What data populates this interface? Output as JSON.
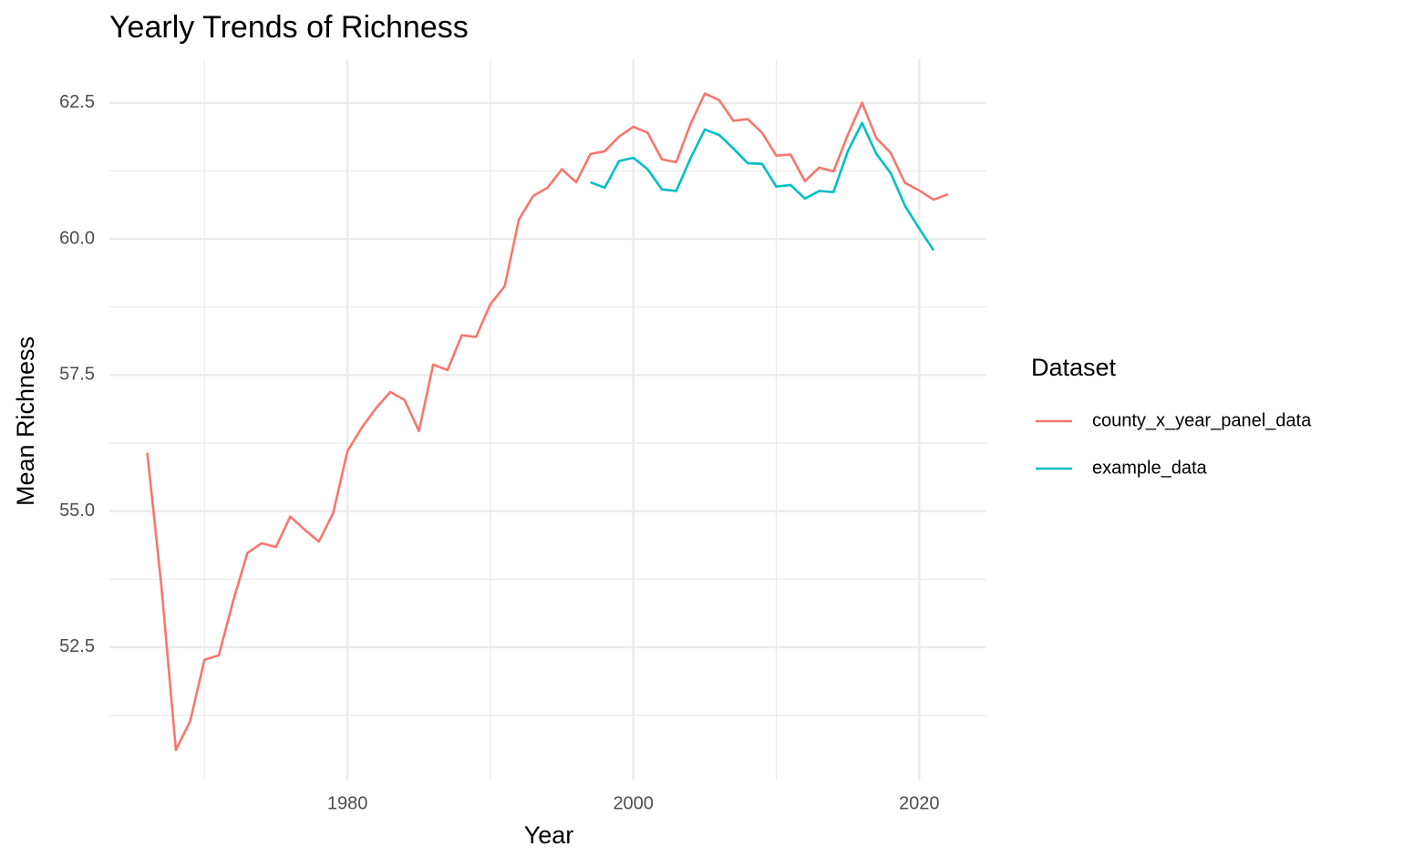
{
  "chart_data": {
    "type": "line",
    "title": "Yearly Trends of Richness",
    "x_label": "Year",
    "y_label": "Mean Richness",
    "legend_title": "Dataset",
    "legend": "right",
    "grid": true,
    "x": [
      1966,
      1967,
      1968,
      1969,
      1970,
      1971,
      1972,
      1973,
      1974,
      1975,
      1976,
      1977,
      1978,
      1979,
      1980,
      1981,
      1982,
      1983,
      1984,
      1985,
      1986,
      1987,
      1988,
      1989,
      1990,
      1991,
      1992,
      1993,
      1994,
      1995,
      1996,
      1997,
      1998,
      1999,
      2000,
      2001,
      2002,
      2003,
      2004,
      2005,
      2006,
      2007,
      2008,
      2009,
      2010,
      2011,
      2012,
      2013,
      2014,
      2015,
      2016,
      2017,
      2018,
      2019,
      2020,
      2021,
      2022
    ],
    "series": [
      {
        "name": "county_x_year_panel_data",
        "color": "#F8766D",
        "values": [
          56.07,
          53.59,
          50.61,
          51.14,
          52.27,
          52.35,
          53.34,
          54.23,
          54.41,
          54.34,
          54.9,
          54.66,
          54.44,
          54.96,
          56.1,
          56.53,
          56.89,
          57.19,
          57.04,
          56.47,
          57.69,
          57.59,
          58.23,
          58.2,
          58.8,
          59.13,
          60.36,
          60.79,
          60.94,
          61.28,
          61.04,
          61.56,
          61.61,
          61.88,
          62.06,
          61.95,
          61.46,
          61.41,
          62.11,
          62.67,
          62.55,
          62.17,
          62.2,
          61.95,
          61.53,
          61.55,
          61.06,
          61.31,
          61.24,
          61.91,
          62.5,
          61.85,
          61.58,
          61.03,
          60.89,
          60.72,
          60.82
        ]
      },
      {
        "name": "example_data",
        "color": "#00BFC4",
        "values": [
          null,
          null,
          null,
          null,
          null,
          null,
          null,
          null,
          null,
          null,
          null,
          null,
          null,
          null,
          null,
          null,
          null,
          null,
          null,
          null,
          null,
          null,
          null,
          null,
          null,
          null,
          null,
          null,
          null,
          null,
          null,
          61.04,
          60.94,
          61.43,
          61.49,
          61.28,
          60.91,
          60.88,
          61.48,
          62.01,
          61.91,
          61.66,
          61.39,
          61.38,
          60.96,
          60.99,
          60.74,
          60.88,
          60.86,
          61.61,
          62.13,
          61.56,
          61.21,
          60.61,
          60.19,
          59.79,
          null
        ]
      }
    ],
    "xlim": [
      1963.35,
      2024.7
    ],
    "xticks": [
      1980,
      2000,
      2020
    ],
    "x_minor_ticks": [
      1970,
      1990,
      2010
    ],
    "ylim": [
      50.07,
      63.3
    ],
    "yticks": [
      {
        "value": 52.5,
        "label": "52.5"
      },
      {
        "value": 55,
        "label": "55.0"
      },
      {
        "value": 57.5,
        "label": "57.5"
      },
      {
        "value": 60,
        "label": "60.0"
      },
      {
        "value": 62.5,
        "label": "62.5"
      }
    ],
    "y_minor_ticks": [
      51.25,
      53.75,
      56.25,
      58.75,
      61.25
    ]
  }
}
